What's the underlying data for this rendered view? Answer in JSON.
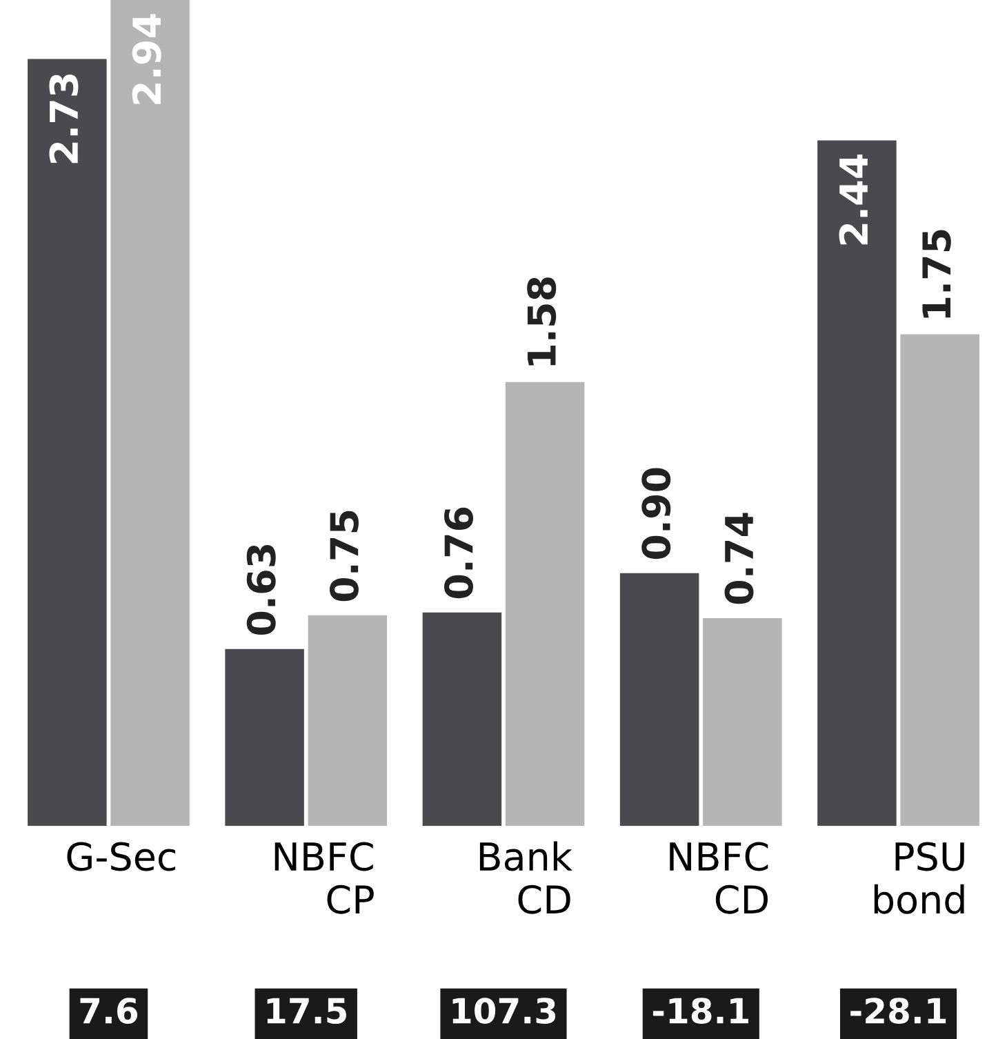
{
  "chart_data": {
    "type": "bar",
    "categories": [
      "G-Sec",
      "NBFC\nCP",
      "Bank\nCD",
      "NBFC\nCD",
      "PSU\nbond"
    ],
    "series": [
      {
        "color": "#4a4a4e",
        "values": [
          2.73,
          0.63,
          0.76,
          0.9,
          2.44
        ],
        "value_labels": [
          "2.73",
          "0.63",
          "0.76",
          "0.90",
          "2.44"
        ]
      },
      {
        "color": "#b5b5b5",
        "values": [
          2.94,
          0.75,
          1.58,
          0.74,
          1.75
        ],
        "value_labels": [
          "2.94",
          "0.75",
          "1.58",
          "0.74",
          "1.75"
        ]
      }
    ],
    "annotations": [
      "7.6",
      "17.5",
      "107.3",
      "-18.1",
      "-28.1"
    ],
    "grid": false,
    "legend": false
  }
}
